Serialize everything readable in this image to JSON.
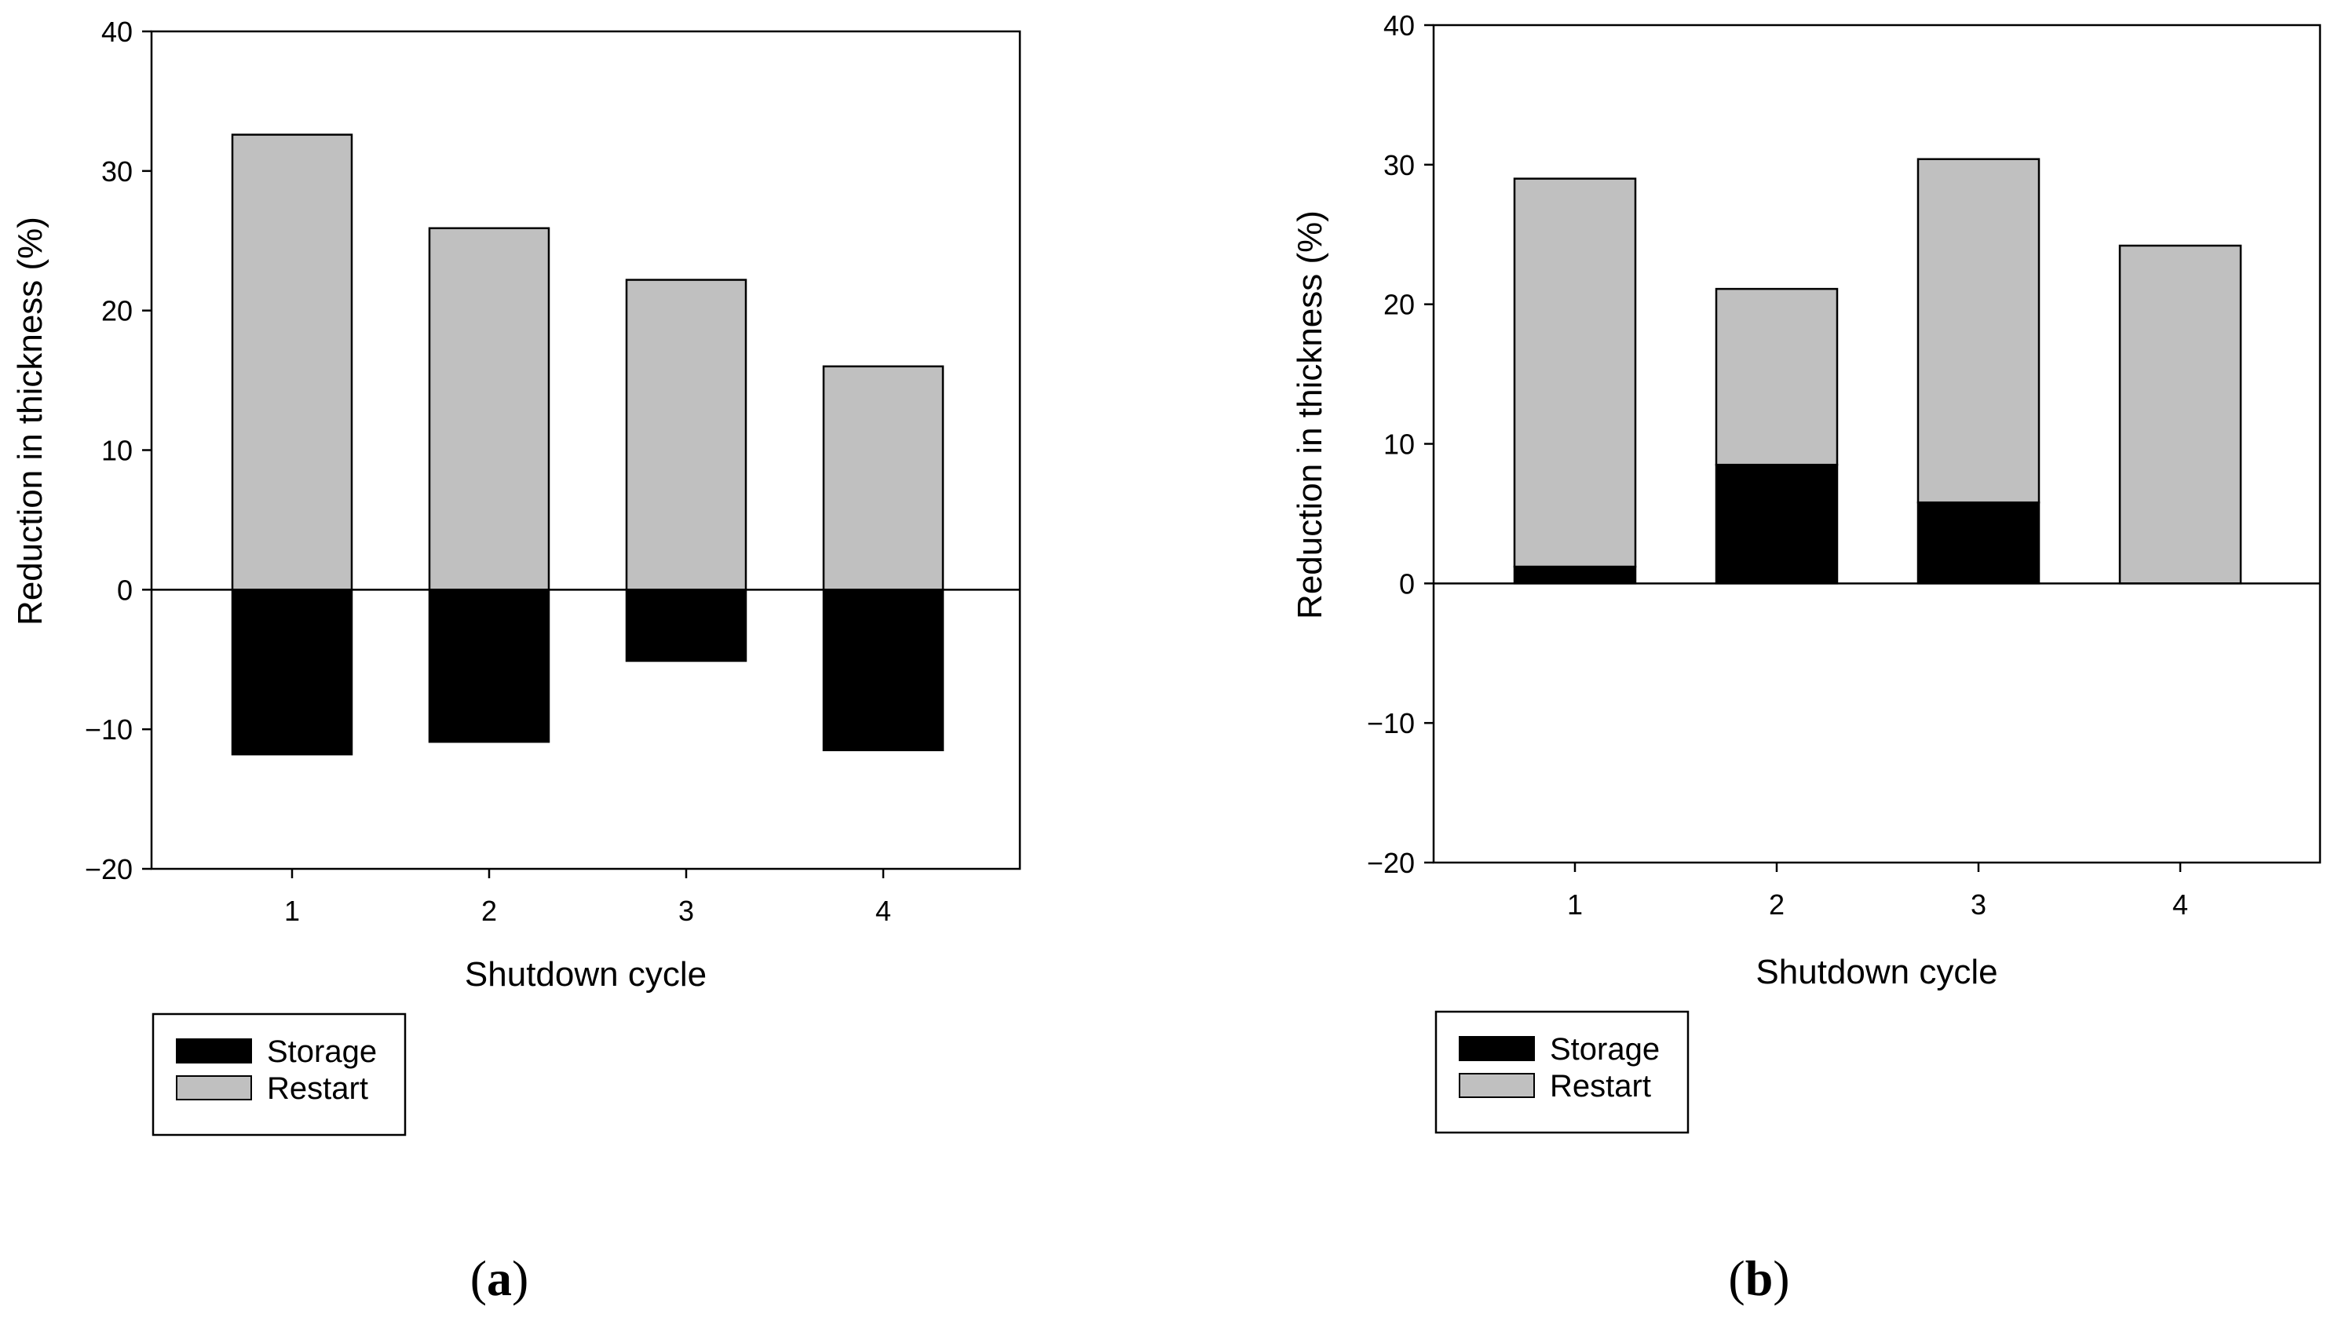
{
  "chart_data": [
    {
      "type": "bar",
      "stacked": true,
      "panel_label": "a",
      "categories": [
        "1",
        "2",
        "3",
        "4"
      ],
      "series": [
        {
          "name": "Storage",
          "values": [
            -11.8,
            -10.9,
            -5.1,
            -11.5
          ],
          "color": "#000000"
        },
        {
          "name": "Restart",
          "values": [
            32.6,
            25.9,
            22.2,
            16.0
          ],
          "color": "#c0c0c0"
        }
      ],
      "title": "",
      "xlabel": "Shutdown cycle",
      "ylabel": "Reduction in thickness (%)",
      "ylim": [
        -20,
        40
      ],
      "yticks": [
        -20,
        -10,
        0,
        10,
        20,
        30,
        40
      ],
      "ytick_labels": [
        "−20",
        "−10",
        "0",
        "10",
        "20",
        "30",
        "40"
      ],
      "legend": [
        "Storage",
        "Restart"
      ],
      "legend_position": "below-left",
      "grid": false
    },
    {
      "type": "bar",
      "stacked": true,
      "panel_label": "b",
      "categories": [
        "1",
        "2",
        "3",
        "4"
      ],
      "series": [
        {
          "name": "Storage",
          "values": [
            1.2,
            8.5,
            5.8,
            0
          ],
          "color": "#000000"
        },
        {
          "name": "Restart",
          "values": [
            27.8,
            12.6,
            24.6,
            24.2
          ],
          "color": "#c0c0c0"
        }
      ],
      "title": "",
      "xlabel": "Shutdown cycle",
      "ylabel": "Reduction in thickness (%)",
      "ylim": [
        -20,
        40
      ],
      "yticks": [
        -20,
        -10,
        0,
        10,
        20,
        30,
        40
      ],
      "ytick_labels": [
        "−20",
        "−10",
        "0",
        "10",
        "20",
        "30",
        "40"
      ],
      "legend": [
        "Storage",
        "Restart"
      ],
      "legend_position": "below-left",
      "grid": false
    }
  ]
}
